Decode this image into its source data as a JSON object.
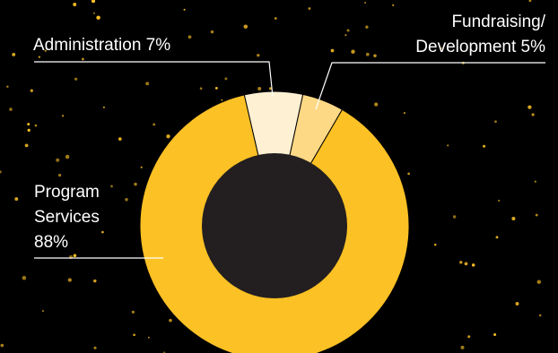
{
  "chart_data": {
    "type": "pie",
    "style": "donut",
    "title": "",
    "slices": [
      {
        "label": "Program Services",
        "value": 88,
        "label_lines": [
          "Program",
          "Services",
          "88%"
        ],
        "color": "#FCC124"
      },
      {
        "label": "Administration",
        "value": 7,
        "label_lines": [
          "Administration 7%"
        ],
        "color": "#FEF0D2"
      },
      {
        "label": "Fundraising/Development",
        "value": 5,
        "label_lines": [
          "Fundraising/",
          "Development 5%"
        ],
        "color": "#FDD885"
      }
    ]
  },
  "colors": {
    "background": "#000000",
    "donut_hole": "#231F20",
    "label_text": "#FFFFFF",
    "leader_line": "#FFFFFF",
    "star_dots": "#FCC124"
  },
  "decoration": "starfield-dots"
}
